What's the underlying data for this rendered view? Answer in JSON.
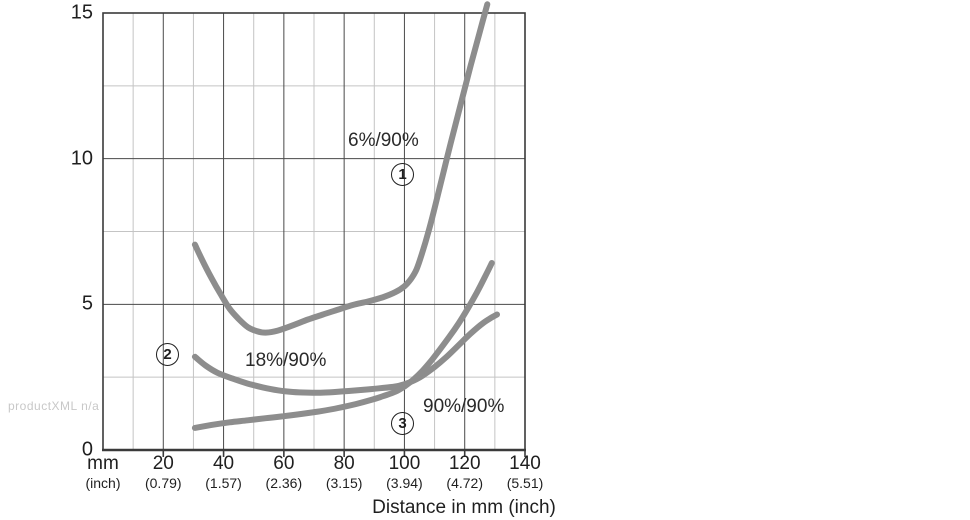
{
  "watermark": "productXML n/a",
  "chart_data": {
    "type": "line",
    "title": "",
    "xlabel": "Distance in mm (inch)",
    "x_unit_label": {
      "line1": "mm",
      "line2": "(inch)"
    },
    "xlim": [
      0,
      140
    ],
    "ylim": [
      0,
      15
    ],
    "x_major_step": 20,
    "x_minor_step": 10,
    "y_major_step": 5,
    "y_minor_step": 2.5,
    "grid": "on",
    "legend_position": "inline-annotations",
    "y_ticks": [
      {
        "label": "15",
        "value": 15
      },
      {
        "label": "10",
        "value": 10
      },
      {
        "label": "5",
        "value": 5
      },
      {
        "label": "0",
        "value": 0
      }
    ],
    "x_ticks": [
      {
        "mm": "20",
        "inch": "(0.79)",
        "value": 20
      },
      {
        "mm": "40",
        "inch": "(1.57)",
        "value": 40
      },
      {
        "mm": "60",
        "inch": "(2.36)",
        "value": 60
      },
      {
        "mm": "80",
        "inch": "(3.15)",
        "value": 80
      },
      {
        "mm": "100",
        "inch": "(3.94)",
        "value": 100
      },
      {
        "mm": "120",
        "inch": "(4.72)",
        "value": 120
      },
      {
        "mm": "140",
        "inch": "(5.51)",
        "value": 140
      }
    ],
    "series": [
      {
        "name": "6%/90%",
        "marker": "1",
        "points": [
          [
            30.5,
            7.05
          ],
          [
            33,
            6.5
          ],
          [
            36,
            5.9
          ],
          [
            39,
            5.35
          ],
          [
            42,
            4.85
          ],
          [
            45,
            4.5
          ],
          [
            48,
            4.22
          ],
          [
            51,
            4.08
          ],
          [
            54,
            4.03
          ],
          [
            58,
            4.1
          ],
          [
            63,
            4.28
          ],
          [
            68,
            4.48
          ],
          [
            73,
            4.65
          ],
          [
            78,
            4.82
          ],
          [
            83,
            4.98
          ],
          [
            88,
            5.1
          ],
          [
            93,
            5.25
          ],
          [
            97,
            5.42
          ],
          [
            100,
            5.62
          ],
          [
            102,
            5.85
          ],
          [
            104,
            6.2
          ],
          [
            106,
            6.8
          ],
          [
            108,
            7.5
          ],
          [
            110,
            8.3
          ],
          [
            113,
            9.55
          ],
          [
            116,
            10.8
          ],
          [
            119,
            12.0
          ],
          [
            122,
            13.2
          ],
          [
            125,
            14.35
          ],
          [
            127.5,
            15.3
          ]
        ]
      },
      {
        "name": "18%/90%",
        "marker": "2",
        "points": [
          [
            30.5,
            3.2
          ],
          [
            34,
            2.9
          ],
          [
            38,
            2.65
          ],
          [
            43,
            2.45
          ],
          [
            48,
            2.28
          ],
          [
            53,
            2.15
          ],
          [
            58,
            2.05
          ],
          [
            63,
            1.99
          ],
          [
            68,
            1.97
          ],
          [
            73,
            1.97
          ],
          [
            78,
            2.0
          ],
          [
            83,
            2.04
          ],
          [
            88,
            2.08
          ],
          [
            93,
            2.13
          ],
          [
            97,
            2.18
          ],
          [
            100,
            2.26
          ],
          [
            103,
            2.38
          ],
          [
            106,
            2.55
          ],
          [
            110,
            2.85
          ],
          [
            114,
            3.2
          ],
          [
            118,
            3.6
          ],
          [
            122,
            4.0
          ],
          [
            126,
            4.35
          ],
          [
            129,
            4.55
          ],
          [
            130.7,
            4.65
          ]
        ]
      },
      {
        "name": "90%/90%",
        "marker": "3",
        "points": [
          [
            30.5,
            0.76
          ],
          [
            36,
            0.86
          ],
          [
            42,
            0.95
          ],
          [
            48,
            1.02
          ],
          [
            54,
            1.09
          ],
          [
            60,
            1.16
          ],
          [
            66,
            1.24
          ],
          [
            72,
            1.33
          ],
          [
            78,
            1.44
          ],
          [
            84,
            1.58
          ],
          [
            89,
            1.72
          ],
          [
            93,
            1.85
          ],
          [
            97,
            2.0
          ],
          [
            100,
            2.18
          ],
          [
            103,
            2.42
          ],
          [
            106,
            2.72
          ],
          [
            109,
            3.08
          ],
          [
            112,
            3.48
          ],
          [
            115,
            3.9
          ],
          [
            118,
            4.35
          ],
          [
            121,
            4.85
          ],
          [
            124,
            5.4
          ],
          [
            126.5,
            5.9
          ],
          [
            129,
            6.42
          ]
        ]
      }
    ]
  },
  "colors": {
    "curve": "#8d8d8d",
    "grid_major": "#4a4a4a",
    "grid_minor": "#c4c4c4",
    "border": "#3a3a3a",
    "text": "#1f1f1f",
    "watermark": "#c8c8c8"
  }
}
